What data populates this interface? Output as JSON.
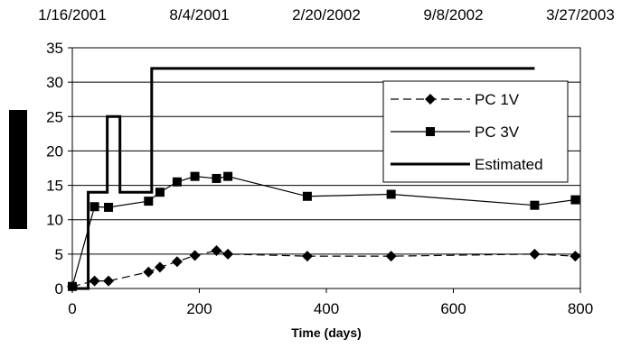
{
  "chart_data": {
    "type": "line",
    "xlabel": "Time (days)",
    "ylabel": "",
    "xlim": [
      0,
      800
    ],
    "ylim": [
      0,
      35
    ],
    "x_ticks": [
      0,
      200,
      400,
      600,
      800
    ],
    "y_ticks": [
      0,
      5,
      10,
      15,
      20,
      25,
      30,
      35
    ],
    "top_axis_labels": [
      {
        "x": 0,
        "label": "1/16/2001"
      },
      {
        "x": 200,
        "label": "8/4/2001"
      },
      {
        "x": 400,
        "label": "2/20/2002"
      },
      {
        "x": 600,
        "label": "9/8/2002"
      },
      {
        "x": 800,
        "label": "3/27/2003"
      }
    ],
    "grid": "horizontal",
    "legend_position": "top-right",
    "series": [
      {
        "name": "PC 1V",
        "style": "dashed",
        "marker": "diamond",
        "color": "#000000",
        "points": [
          {
            "x": 0,
            "y": 0.3
          },
          {
            "x": 35,
            "y": 1.1
          },
          {
            "x": 57,
            "y": 1.1
          },
          {
            "x": 120,
            "y": 2.4
          },
          {
            "x": 138,
            "y": 3.1
          },
          {
            "x": 165,
            "y": 3.9
          },
          {
            "x": 193,
            "y": 4.8
          },
          {
            "x": 227,
            "y": 5.5
          },
          {
            "x": 245,
            "y": 5.0
          },
          {
            "x": 370,
            "y": 4.7
          },
          {
            "x": 502,
            "y": 4.7
          },
          {
            "x": 728,
            "y": 5.0
          },
          {
            "x": 792,
            "y": 4.7
          }
        ]
      },
      {
        "name": "PC 3V",
        "style": "solid",
        "marker": "square",
        "color": "#000000",
        "points": [
          {
            "x": 0,
            "y": 0.3
          },
          {
            "x": 35,
            "y": 11.9
          },
          {
            "x": 57,
            "y": 11.8
          },
          {
            "x": 120,
            "y": 12.7
          },
          {
            "x": 138,
            "y": 14.0
          },
          {
            "x": 165,
            "y": 15.5
          },
          {
            "x": 193,
            "y": 16.3
          },
          {
            "x": 227,
            "y": 16.0
          },
          {
            "x": 245,
            "y": 16.3
          },
          {
            "x": 370,
            "y": 13.4
          },
          {
            "x": 502,
            "y": 13.7
          },
          {
            "x": 728,
            "y": 12.1
          },
          {
            "x": 792,
            "y": 12.9
          }
        ]
      },
      {
        "name": "Estimated",
        "style": "bold",
        "marker": "none",
        "color": "#000000",
        "points": [
          {
            "x": 0,
            "y": 0
          },
          {
            "x": 25,
            "y": 0
          },
          {
            "x": 25,
            "y": 14
          },
          {
            "x": 55,
            "y": 14
          },
          {
            "x": 55,
            "y": 25
          },
          {
            "x": 75,
            "y": 25
          },
          {
            "x": 75,
            "y": 14
          },
          {
            "x": 125,
            "y": 14
          },
          {
            "x": 125,
            "y": 32
          },
          {
            "x": 728,
            "y": 32
          }
        ]
      }
    ]
  }
}
